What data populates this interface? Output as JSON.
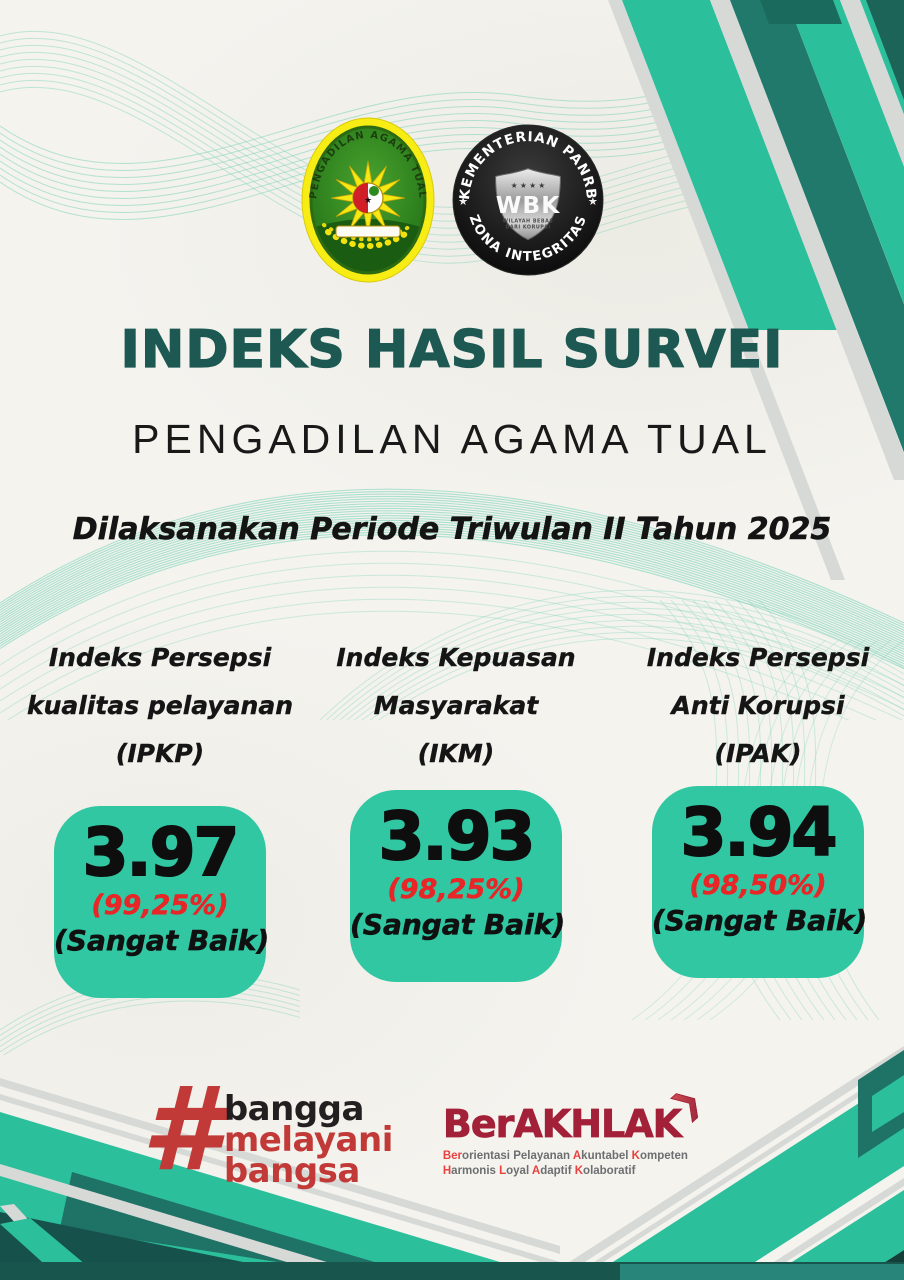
{
  "header": {
    "title": "INDEKS HASIL SURVEI",
    "subtitle": "PENGADILAN AGAMA TUAL",
    "period": "Dilaksanakan Periode Triwulan II Tahun 2025"
  },
  "logos": {
    "court": {
      "arc_text": "PENGADILAN AGAMA TUAL"
    },
    "wbk": {
      "arc_top": "KEMENTERIAN PANRB",
      "arc_bottom": "ZONA INTEGRITAS",
      "shield_text": "WBK",
      "shield_sub1": "WILAYAH BEBAS",
      "shield_sub2": "DARI KORUPSI",
      "stars": "★ ★ ★ ★",
      "side_star": "★"
    }
  },
  "indices": [
    {
      "line1": "Indeks Persepsi",
      "line2": "kualitas pelayanan",
      "abbr": "(IPKP)",
      "score": "3.97",
      "percent": "(99,25%)",
      "rating": "(Sangat Baik)"
    },
    {
      "line1": "Indeks Kepuasan",
      "line2": "Masyarakat",
      "abbr": "(IKM)",
      "score": "3.93",
      "percent": "(98,25%)",
      "rating": "(Sangat Baik)"
    },
    {
      "line1": "Indeks Persepsi",
      "line2": "Anti Korupsi",
      "abbr": "(IPAK)",
      "score": "3.94",
      "percent": "(98,50%)",
      "rating": "(Sangat Baik)"
    }
  ],
  "footer": {
    "bangga": {
      "hash": "#",
      "lines": [
        "bangga",
        "melayani",
        "bangsa"
      ]
    },
    "berakhlak": {
      "title": "BerAKHLAK",
      "arrow": "❯",
      "tagline_line1": [
        {
          "t": "Ber",
          "red": true
        },
        {
          "t": "orientasi ",
          "red": false
        },
        {
          "t": "Pelayanan ",
          "red": false
        },
        {
          "t": "A",
          "red": true
        },
        {
          "t": "kuntabel ",
          "red": false
        },
        {
          "t": "K",
          "red": true
        },
        {
          "t": "ompeten",
          "red": false
        }
      ],
      "tagline_line2": [
        {
          "t": "H",
          "red": true
        },
        {
          "t": "armonis ",
          "red": false
        },
        {
          "t": "L",
          "red": true
        },
        {
          "t": "oyal ",
          "red": false
        },
        {
          "t": "A",
          "red": true
        },
        {
          "t": "daptif ",
          "red": false
        },
        {
          "t": "K",
          "red": true
        },
        {
          "t": "olaboratif",
          "red": false
        }
      ]
    }
  },
  "colors": {
    "title_teal": "#1d5952",
    "card_teal": "#30c7a2",
    "stripe_green": "#2bbf9b",
    "stripe_dark_teal": "#20796b",
    "stripe_gray": "#d6d9d6",
    "percent_red": "#e82627",
    "bangga_red": "#c23a38",
    "berakhlak_maroon": "#a32138",
    "tagline_gray": "#6d6e71",
    "tagline_red": "#e8413f",
    "paper": "#f4f3ee"
  }
}
